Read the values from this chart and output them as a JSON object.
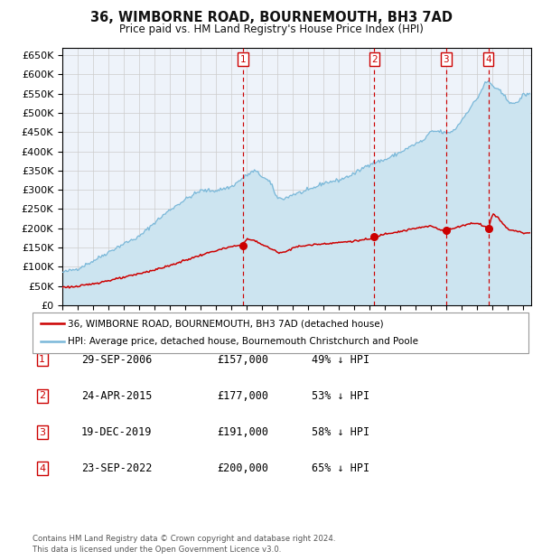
{
  "title": "36, WIMBORNE ROAD, BOURNEMOUTH, BH3 7AD",
  "subtitle": "Price paid vs. HM Land Registry's House Price Index (HPI)",
  "legend_line1": "36, WIMBORNE ROAD, BOURNEMOUTH, BH3 7AD (detached house)",
  "legend_line2": "HPI: Average price, detached house, Bournemouth Christchurch and Poole",
  "footer1": "Contains HM Land Registry data © Crown copyright and database right 2024.",
  "footer2": "This data is licensed under the Open Government Licence v3.0.",
  "hpi_color": "#7ab8d9",
  "hpi_fill_color": "#cce4f0",
  "price_color": "#cc0000",
  "marker_color": "#cc0000",
  "dashed_color": "#cc0000",
  "box_color": "#cc0000",
  "ylim": [
    0,
    670000
  ],
  "yticks": [
    0,
    50000,
    100000,
    150000,
    200000,
    250000,
    300000,
    350000,
    400000,
    450000,
    500000,
    550000,
    600000,
    650000
  ],
  "xlim_start": 1995.0,
  "xlim_end": 2025.5,
  "transactions": [
    {
      "num": 1,
      "date_str": "29-SEP-2006",
      "date_x": 2006.75,
      "price": 157000,
      "hpi_pct": "49% ↓ HPI"
    },
    {
      "num": 2,
      "date_str": "24-APR-2015",
      "date_x": 2015.3,
      "price": 177000,
      "hpi_pct": "53% ↓ HPI"
    },
    {
      "num": 3,
      "date_str": "19-DEC-2019",
      "date_x": 2019.97,
      "price": 191000,
      "hpi_pct": "58% ↓ HPI"
    },
    {
      "num": 4,
      "date_str": "23-SEP-2022",
      "date_x": 2022.73,
      "price": 200000,
      "hpi_pct": "65% ↓ HPI"
    }
  ],
  "background_color": "#ffffff",
  "plot_bg_color": "#eef3fa",
  "grid_color": "#cccccc"
}
